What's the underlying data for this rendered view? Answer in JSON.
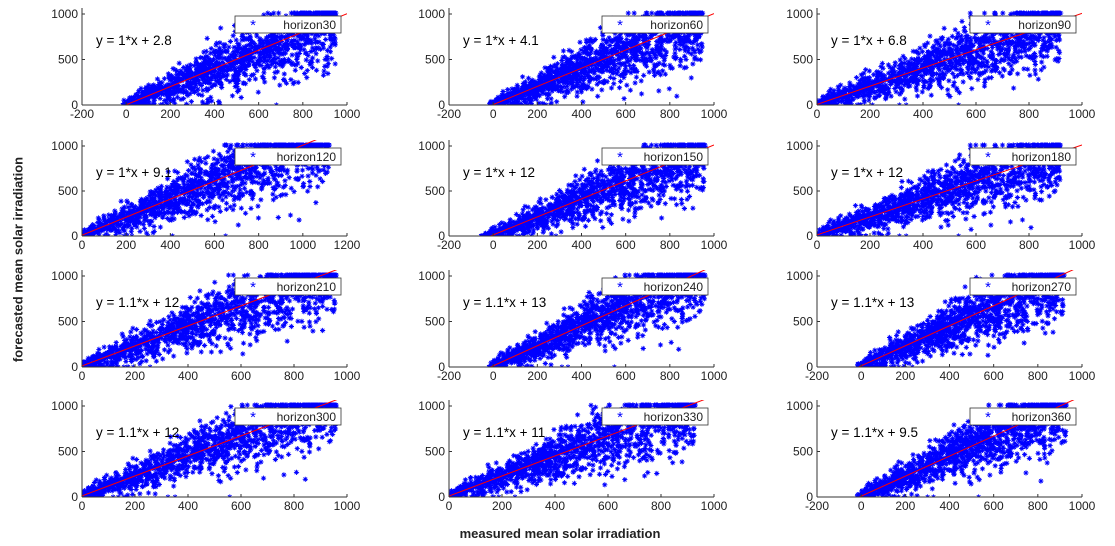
{
  "figure": {
    "ylabel": "forecasted mean solar irradiation",
    "xlabel": "measured mean solar irradiation"
  },
  "colors": {
    "points": "#0000ff",
    "fit": "#ff0000",
    "axis": "#333333"
  },
  "chart_data": [
    {
      "type": "scatter",
      "legend": "horizon30",
      "equation": "y = 1*x + 2.8",
      "slope": 1,
      "intercept": 2.8,
      "xlim": [
        -200,
        1000
      ],
      "ylim": [
        0,
        1000
      ],
      "xticks": [
        -200,
        0,
        200,
        400,
        600,
        800,
        1000
      ],
      "yticks": [
        0,
        500,
        1000
      ],
      "xrange": [
        -20,
        950
      ],
      "legend_position": "top-right",
      "marker": "*"
    },
    {
      "type": "scatter",
      "legend": "horizon60",
      "equation": "y = 1*x + 4.1",
      "slope": 1,
      "intercept": 4.1,
      "xlim": [
        -200,
        1000
      ],
      "ylim": [
        0,
        1000
      ],
      "xticks": [
        -200,
        0,
        200,
        400,
        600,
        800,
        1000
      ],
      "yticks": [
        0,
        500,
        1000
      ],
      "xrange": [
        -20,
        950
      ],
      "legend_position": "top-right",
      "marker": "*"
    },
    {
      "type": "scatter",
      "legend": "horizon90",
      "equation": "y = 1*x + 6.8",
      "slope": 1,
      "intercept": 6.8,
      "xlim": [
        0,
        1000
      ],
      "ylim": [
        0,
        1000
      ],
      "xticks": [
        0,
        200,
        400,
        600,
        800,
        1000
      ],
      "yticks": [
        0,
        500,
        1000
      ],
      "xrange": [
        0,
        920
      ],
      "legend_position": "top-right",
      "marker": "*"
    },
    {
      "type": "scatter",
      "legend": "horizon120",
      "equation": "y = 1*x + 9.1",
      "slope": 1,
      "intercept": 9.1,
      "xlim": [
        0,
        1200
      ],
      "ylim": [
        0,
        1000
      ],
      "xticks": [
        0,
        200,
        400,
        600,
        800,
        1000,
        1200
      ],
      "yticks": [
        0,
        500,
        1000
      ],
      "xrange": [
        0,
        1120
      ],
      "legend_position": "top-right",
      "marker": "*"
    },
    {
      "type": "scatter",
      "legend": "horizon150",
      "equation": "y = 1*x + 12",
      "slope": 1,
      "intercept": 12,
      "xlim": [
        -200,
        1000
      ],
      "ylim": [
        0,
        1000
      ],
      "xticks": [
        -200,
        0,
        200,
        400,
        600,
        800,
        1000
      ],
      "yticks": [
        0,
        500,
        1000
      ],
      "xrange": [
        -60,
        960
      ],
      "legend_position": "top-right",
      "marker": "*"
    },
    {
      "type": "scatter",
      "legend": "horizon180",
      "equation": "y = 1*x + 12",
      "slope": 1,
      "intercept": 12,
      "xlim": [
        0,
        1000
      ],
      "ylim": [
        0,
        1000
      ],
      "xticks": [
        0,
        200,
        400,
        600,
        800,
        1000
      ],
      "yticks": [
        0,
        500,
        1000
      ],
      "xrange": [
        0,
        920
      ],
      "legend_position": "top-right",
      "marker": "*"
    },
    {
      "type": "scatter",
      "legend": "horizon210",
      "equation": "y = 1.1*x + 12",
      "slope": 1.1,
      "intercept": 12,
      "xlim": [
        0,
        1000
      ],
      "ylim": [
        0,
        1000
      ],
      "xticks": [
        0,
        200,
        400,
        600,
        800,
        1000
      ],
      "yticks": [
        0,
        500,
        1000
      ],
      "xrange": [
        0,
        960
      ],
      "legend_position": "top-right",
      "marker": "*"
    },
    {
      "type": "scatter",
      "legend": "horizon240",
      "equation": "y = 1.1*x + 13",
      "slope": 1.1,
      "intercept": 13,
      "xlim": [
        -200,
        1000
      ],
      "ylim": [
        0,
        1000
      ],
      "xticks": [
        -200,
        0,
        200,
        400,
        600,
        800,
        1000
      ],
      "yticks": [
        0,
        500,
        1000
      ],
      "xrange": [
        -20,
        960
      ],
      "legend_position": "top-right",
      "marker": "*"
    },
    {
      "type": "scatter",
      "legend": "horizon270",
      "equation": "y = 1.1*x + 13",
      "slope": 1.1,
      "intercept": 13,
      "xlim": [
        -200,
        1000
      ],
      "ylim": [
        0,
        1000
      ],
      "xticks": [
        -200,
        0,
        200,
        400,
        600,
        800,
        1000
      ],
      "yticks": [
        0,
        500,
        1000
      ],
      "xrange": [
        -20,
        920
      ],
      "legend_position": "top-right",
      "marker": "*"
    },
    {
      "type": "scatter",
      "legend": "horizon300",
      "equation": "y = 1.1*x + 12",
      "slope": 1.1,
      "intercept": 12,
      "xlim": [
        0,
        1000
      ],
      "ylim": [
        0,
        1000
      ],
      "xticks": [
        0,
        200,
        400,
        600,
        800,
        1000
      ],
      "yticks": [
        0,
        500,
        1000
      ],
      "xrange": [
        0,
        960
      ],
      "legend_position": "top-right",
      "marker": "*"
    },
    {
      "type": "scatter",
      "legend": "horizon330",
      "equation": "y = 1.1*x + 11",
      "slope": 1.1,
      "intercept": 11,
      "xlim": [
        0,
        1000
      ],
      "ylim": [
        0,
        1000
      ],
      "xticks": [
        0,
        200,
        400,
        600,
        800,
        1000
      ],
      "yticks": [
        0,
        500,
        1000
      ],
      "xrange": [
        0,
        930
      ],
      "legend_position": "top-right",
      "marker": "*"
    },
    {
      "type": "scatter",
      "legend": "horizon360",
      "equation": "y = 1.1*x + 9.5",
      "slope": 1.1,
      "intercept": 9.5,
      "xlim": [
        -200,
        1000
      ],
      "ylim": [
        0,
        1000
      ],
      "xticks": [
        -200,
        0,
        200,
        400,
        600,
        800,
        1000
      ],
      "yticks": [
        0,
        500,
        1000
      ],
      "xrange": [
        -20,
        930
      ],
      "legend_position": "top-right",
      "marker": "*"
    }
  ]
}
